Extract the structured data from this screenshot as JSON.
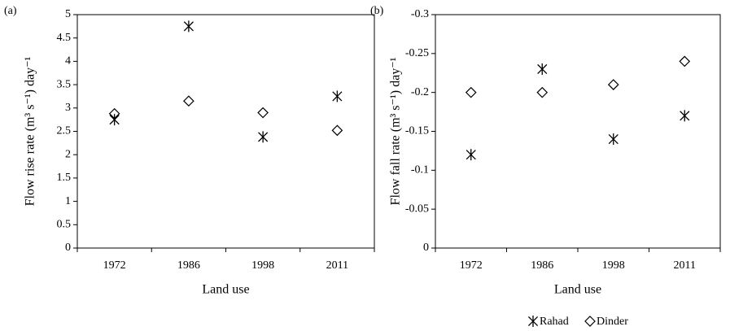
{
  "chart_data": [
    {
      "type": "scatter",
      "panel_label": "(a)",
      "x_label": "Land use",
      "y_label": "Flow rise rate (m³ s⁻¹) day⁻¹",
      "categories": [
        "1972",
        "1986",
        "1998",
        "2011"
      ],
      "series": [
        {
          "name": "Rahad",
          "color": "#000000",
          "marker": "asterisk",
          "values": [
            2.75,
            4.75,
            2.38,
            3.25
          ]
        },
        {
          "name": "Dinder",
          "color": "#000000",
          "marker": "diamond",
          "values": [
            2.88,
            3.15,
            2.9,
            2.52
          ]
        }
      ],
      "ylim": [
        0,
        5
      ],
      "yticks": [
        0,
        0.5,
        1,
        1.5,
        2,
        2.5,
        3,
        3.5,
        4,
        4.5,
        5
      ],
      "legend": false
    },
    {
      "type": "scatter",
      "panel_label": "(b)",
      "x_label": "Land use",
      "y_label": "Flow fall rate (m³ s⁻¹) day⁻¹",
      "categories": [
        "1972",
        "1986",
        "1998",
        "2011"
      ],
      "series": [
        {
          "name": "Rahad",
          "color": "#000000",
          "marker": "asterisk",
          "values": [
            -0.12,
            -0.23,
            -0.14,
            -0.17
          ]
        },
        {
          "name": "Dinder",
          "color": "#000000",
          "marker": "diamond",
          "values": [
            -0.2,
            -0.2,
            -0.21,
            -0.24
          ]
        }
      ],
      "ylim": [
        0,
        -0.3
      ],
      "yticks": [
        0,
        -0.05,
        -0.1,
        -0.15,
        -0.2,
        -0.25,
        -0.3
      ],
      "legend": "bottom"
    }
  ]
}
